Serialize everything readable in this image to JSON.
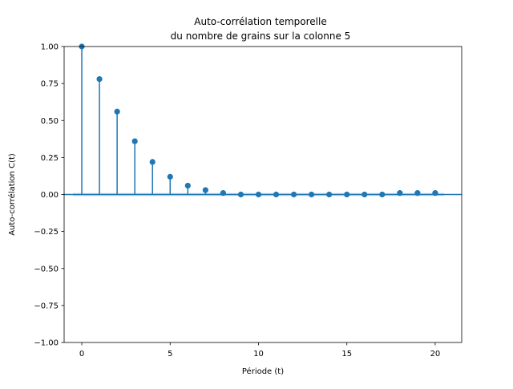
{
  "chart_data": {
    "type": "stem",
    "title_lines": [
      "Auto-corrélation temporelle",
      "du nombre de grains sur la colonne 5"
    ],
    "xlabel": "Période (t)",
    "ylabel": "Auto-corrélation C(t)",
    "xlim": [
      -1,
      21.5
    ],
    "ylim": [
      -1.0,
      1.0
    ],
    "x_ticks": [
      0,
      5,
      10,
      15,
      20
    ],
    "x_tick_labels": [
      "0",
      "5",
      "10",
      "15",
      "20"
    ],
    "y_ticks": [
      1.0,
      0.75,
      0.5,
      0.25,
      0.0,
      -0.25,
      -0.5,
      -0.75,
      -1.0
    ],
    "y_tick_labels": [
      "1.00",
      "0.75",
      "0.50",
      "0.25",
      "0.00",
      "−0.25",
      "−0.50",
      "−0.75",
      "−1.00"
    ],
    "grid": false,
    "x": [
      0,
      1,
      2,
      3,
      4,
      5,
      6,
      7,
      8,
      9,
      10,
      11,
      12,
      13,
      14,
      15,
      16,
      17,
      18,
      19,
      20
    ],
    "values": [
      1.0,
      0.78,
      0.56,
      0.36,
      0.22,
      0.12,
      0.06,
      0.03,
      0.01,
      0.0,
      0.0,
      0.0,
      0.0,
      0.0,
      0.0,
      0.0,
      0.0,
      0.0,
      0.01,
      0.01,
      0.01
    ],
    "confidence_band": [
      -0.01,
      0.01
    ],
    "colors": {
      "stem": "#1f77b4",
      "marker": "#1f77b4",
      "baseline": "#1f77b4",
      "band": "#1f77b4"
    }
  }
}
